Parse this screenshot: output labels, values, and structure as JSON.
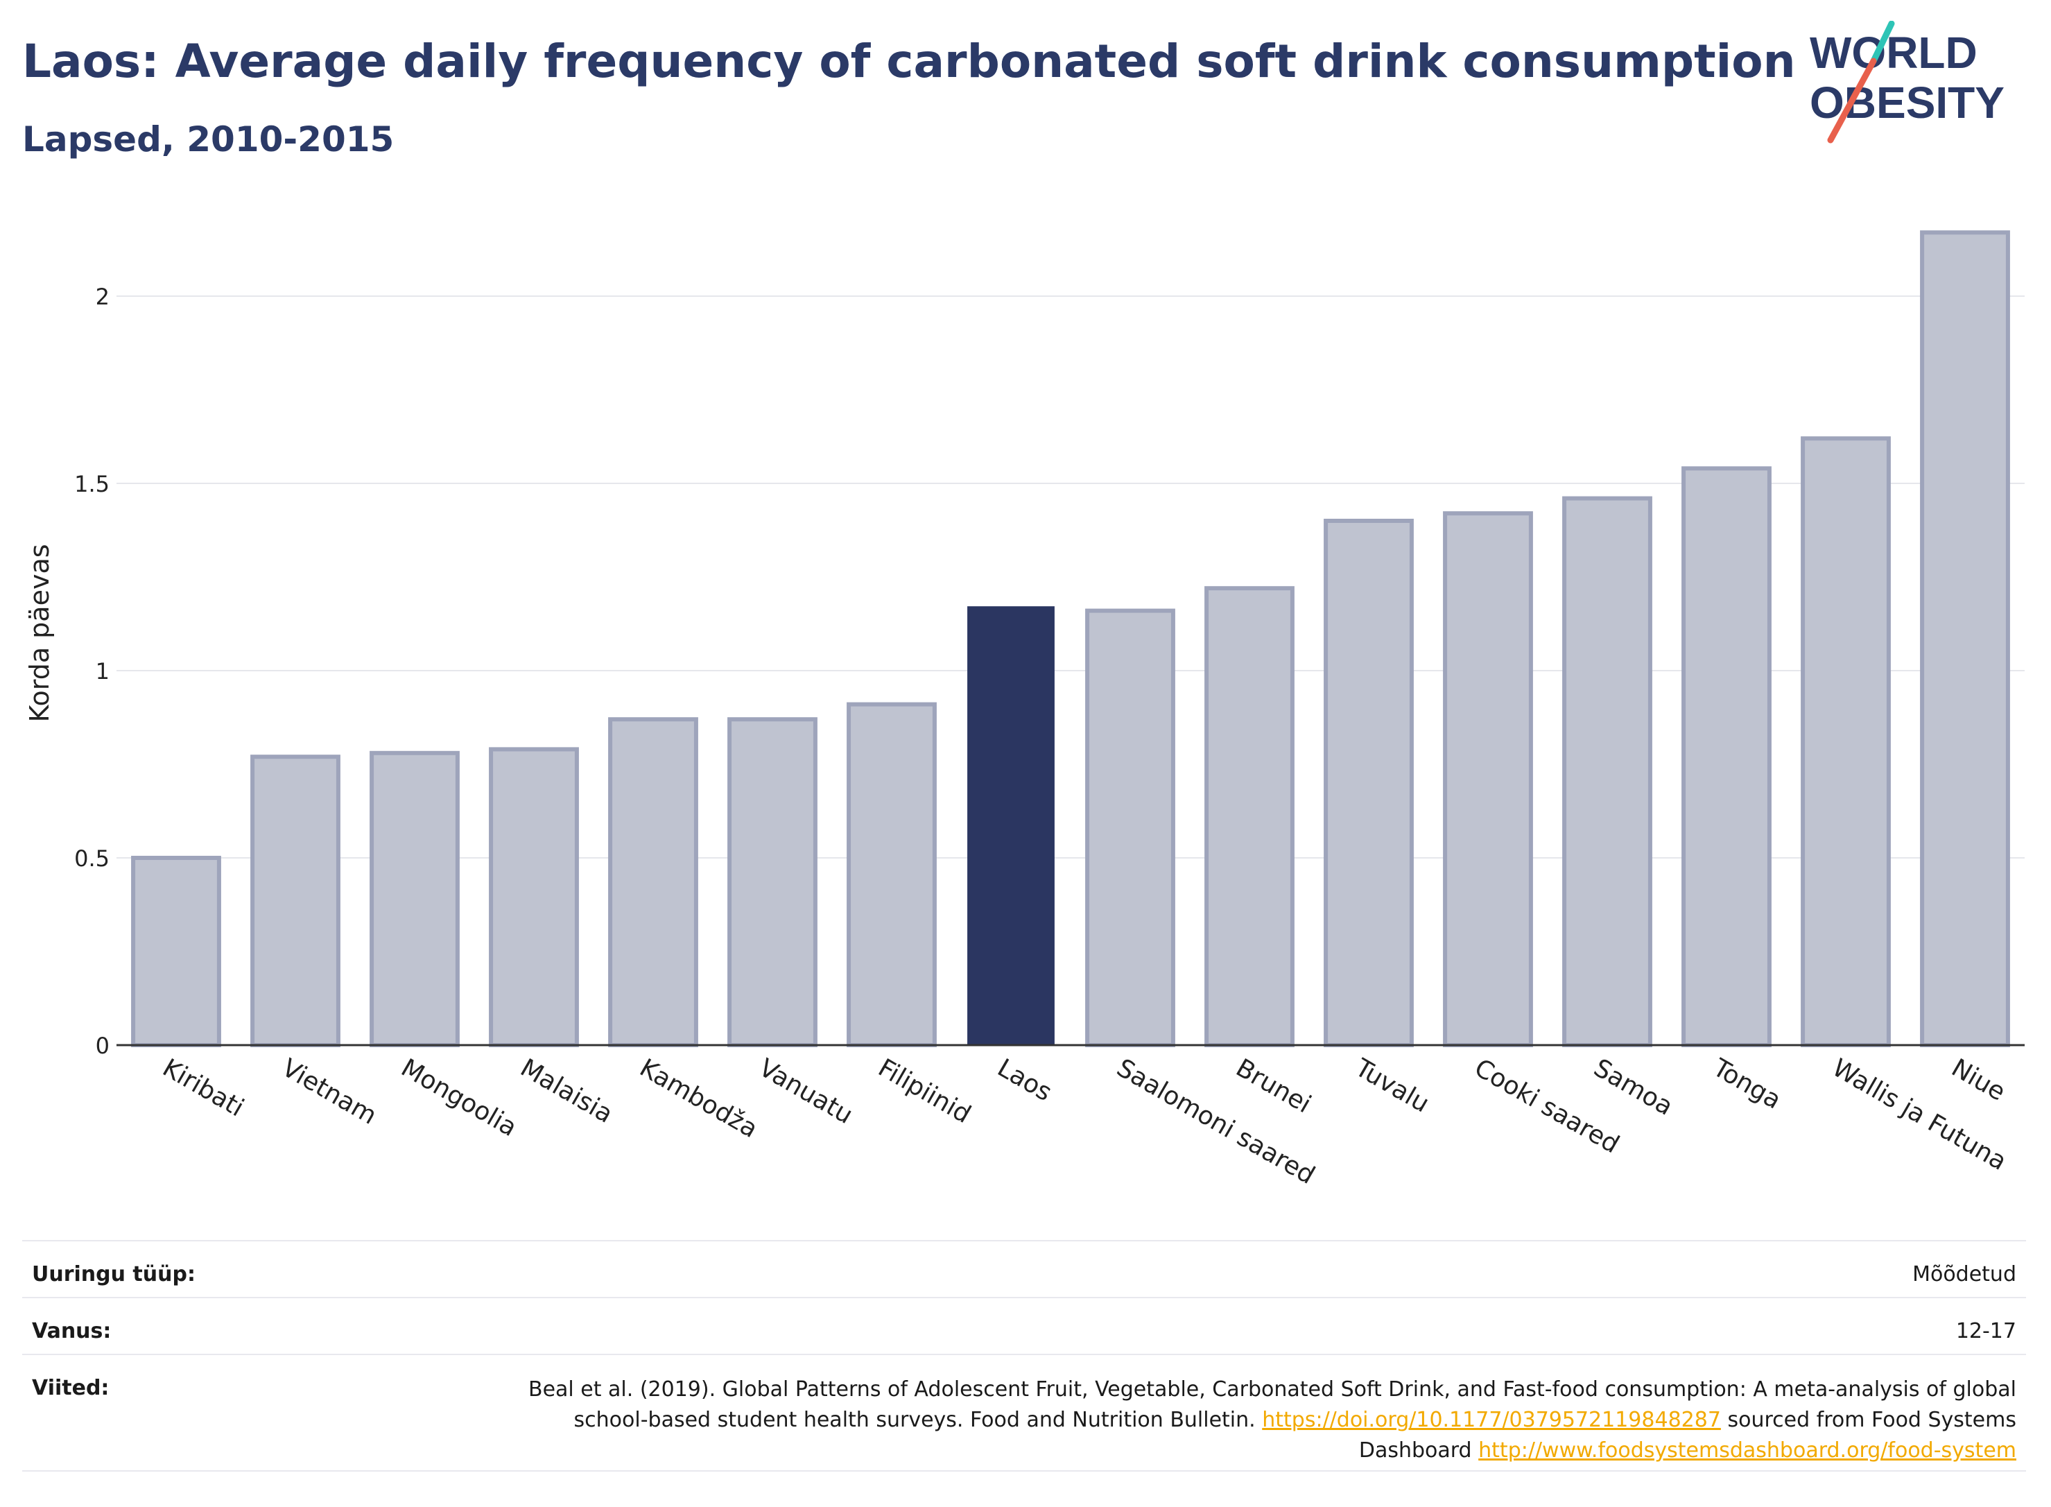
{
  "header": {
    "title": "Laos: Average daily frequency of carbonated soft drink consumption",
    "subtitle": "Lapsed, 2010-2015"
  },
  "logo": {
    "line1": "WORLD",
    "line2": "OBESITY",
    "color_text": "#2b3a67",
    "color_slash_teal": "#2ec4b6",
    "color_slash_coral": "#e8604c"
  },
  "chart_data": {
    "type": "bar",
    "ylabel": "Korda päevas",
    "ylim": [
      0,
      2.2
    ],
    "yticks": [
      0,
      0.5,
      1,
      1.5,
      2
    ],
    "ytick_labels": [
      "0",
      "0.5",
      "1",
      "1.5",
      "2"
    ],
    "grid": true,
    "highlight": "Laos",
    "colors": {
      "bar": "#bfc3d0",
      "bar_edge": "#9ea4bb",
      "highlight": "#2b3661"
    },
    "categories": [
      "Kiribati",
      "Vietnam",
      "Mongoolia",
      "Malaisia",
      "Kambodža",
      "Vanuatu",
      "Filipiinid",
      "Laos",
      "Saalomoni saared",
      "Brunei",
      "Tuvalu",
      "Cooki saared",
      "Samoa",
      "Tonga",
      "Wallis ja Futuna",
      "Niue"
    ],
    "values": [
      0.5,
      0.77,
      0.78,
      0.79,
      0.87,
      0.87,
      0.91,
      1.17,
      1.16,
      1.22,
      1.4,
      1.42,
      1.46,
      1.54,
      1.62,
      2.17
    ]
  },
  "info": {
    "survey_type_label": "Uuringu tüüp:",
    "survey_type_value": "Mõõdetud",
    "age_label": "Vanus:",
    "age_value": "12-17",
    "refs_label": "Viited:",
    "refs_text_1": "Beal et al. (2019). Global Patterns of Adolescent Fruit, Vegetable, Carbonated Soft Drink, and Fast-food consumption: A meta-analysis of global school-based student health surveys. Food and Nutrition Bulletin.",
    "refs_link_1": "https://doi.org/10.1177/0379572119848287",
    "refs_text_2": "sourced from Food Systems Dashboard",
    "refs_link_2": "http://www.foodsystemsdashboard.org/food-system"
  }
}
